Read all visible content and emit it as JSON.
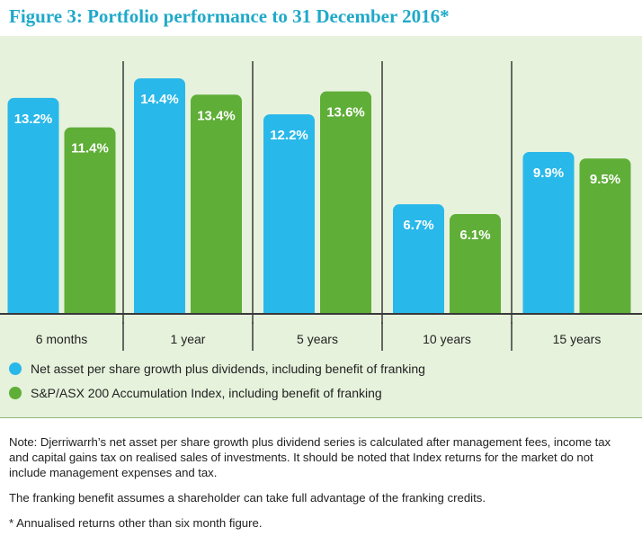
{
  "title": "Figure 3: Portfolio performance to 31 December 2016*",
  "colors": {
    "series1": "#29b8ea",
    "series2": "#5fae37",
    "title": "#1fa9c9",
    "panel_background": "#e6f2dc",
    "bar_label": "#ffffff"
  },
  "chart_data": {
    "type": "bar",
    "categories": [
      "6 months",
      "1 year",
      "5 years",
      "10 years",
      "15 years"
    ],
    "series": [
      {
        "name": "Net asset per share growth plus dividends, including benefit of franking",
        "values": [
          13.2,
          14.4,
          12.2,
          6.7,
          9.9
        ],
        "labels": [
          "13.2%",
          "14.4%",
          "12.2%",
          "6.7%",
          "9.9%"
        ]
      },
      {
        "name": "S&P/ASX 200 Accumulation Index, including benefit of franking",
        "values": [
          11.4,
          13.4,
          13.6,
          6.1,
          9.5
        ],
        "labels": [
          "11.4%",
          "13.4%",
          "13.6%",
          "6.1%",
          "9.5%"
        ]
      }
    ],
    "ylim": [
      0,
      16
    ],
    "grid": false,
    "legend_placement": "bottom-left",
    "xlabel": "",
    "ylabel": ""
  },
  "legend": [
    {
      "label": "Net asset per share growth plus dividends, including benefit of franking",
      "color": "#29b8ea"
    },
    {
      "label": "S&P/ASX 200 Accumulation Index, including benefit of franking",
      "color": "#5fae37"
    }
  ],
  "notes": {
    "note": "Note: Djerriwarrh’s net asset per share growth plus dividend series is calculated after management fees, income tax and capital gains tax on realised sales of investments. It should be noted that Index returns for the market do not include management expenses and tax.",
    "franking": "The franking benefit assumes a shareholder can take full advantage of the franking credits.",
    "footnote": "* Annualised returns other than six month figure."
  }
}
